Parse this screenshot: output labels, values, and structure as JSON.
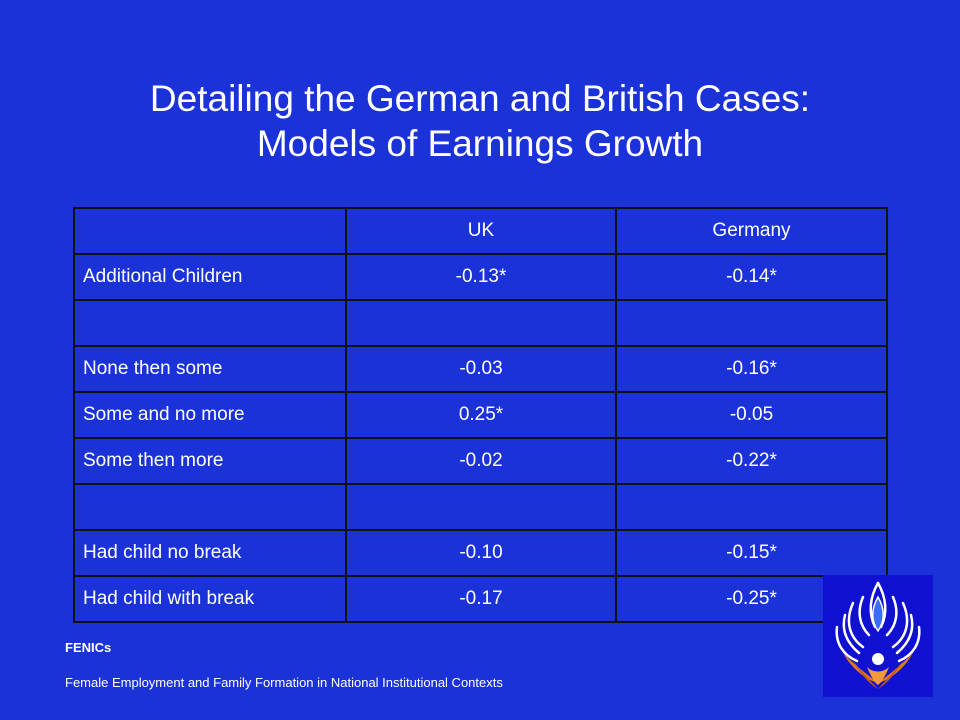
{
  "slide": {
    "title_line1": "Detailing the German and British Cases:",
    "title_line2": "Models of Earnings Growth"
  },
  "table": {
    "header": [
      "",
      "UK",
      "Germany"
    ],
    "rows": [
      {
        "label": "Additional Children",
        "uk": "-0.13*",
        "germany": "-0.14*"
      },
      {
        "label": "",
        "uk": "",
        "germany": ""
      },
      {
        "label": "None then some",
        "uk": "-0.03",
        "germany": "-0.16*"
      },
      {
        "label": "Some and no more",
        "uk": "0.25*",
        "germany": "-0.05"
      },
      {
        "label": "Some then more",
        "uk": "-0.02",
        "germany": "-0.22*"
      },
      {
        "label": "",
        "uk": "",
        "germany": ""
      },
      {
        "label": "Had child no break",
        "uk": "-0.10",
        "germany": "-0.15*"
      },
      {
        "label": "Had child with break",
        "uk": "-0.17",
        "germany": "-0.25*"
      }
    ]
  },
  "footer": {
    "short": "FENICs",
    "long": "Female Employment and Family Formation in National Institutional Contexts"
  },
  "colors": {
    "background": "#1a32d8",
    "text": "#ffffff",
    "border": "#111111",
    "logo_bg": "#1010d0"
  },
  "logo": {
    "icon": "flame-emblem-icon"
  }
}
